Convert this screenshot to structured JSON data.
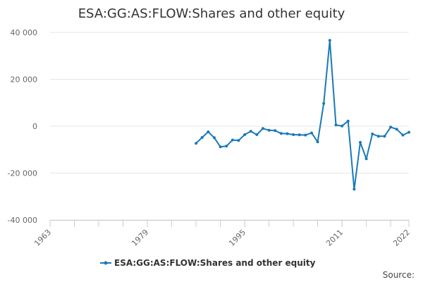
{
  "chart_data": {
    "type": "line",
    "title": "ESA:GG:AS:FLOW:Shares and other equity",
    "xlabel": "",
    "ylabel": "",
    "xlim": [
      1963,
      2022
    ],
    "ylim": [
      -40000,
      40000
    ],
    "x_ticks": [
      {
        "value": 1963,
        "label": "1963"
      },
      {
        "value": 1979,
        "label": "1979"
      },
      {
        "value": 1995,
        "label": "1995"
      },
      {
        "value": 2011,
        "label": "2011"
      },
      {
        "value": 2022,
        "label": "2022"
      }
    ],
    "y_ticks": [
      {
        "value": 40000,
        "label": "40 000"
      },
      {
        "value": 20000,
        "label": "20 000"
      },
      {
        "value": 0,
        "label": "0"
      },
      {
        "value": -20000,
        "label": "-20 000"
      },
      {
        "value": -40000,
        "label": "-40 000"
      }
    ],
    "grid": true,
    "legend_position": "bottom-center",
    "series": [
      {
        "name": "ESA:GG:AS:FLOW:Shares and other equity",
        "color": "#1a7ab5",
        "x": [
          1987,
          1988,
          1989,
          1990,
          1991,
          1992,
          1993,
          1994,
          1995,
          1996,
          1997,
          1998,
          1999,
          2000,
          2001,
          2002,
          2003,
          2004,
          2005,
          2006,
          2007,
          2008,
          2009,
          2010,
          2011,
          2012,
          2013,
          2014,
          2015,
          2016,
          2017,
          2018,
          2019,
          2020,
          2021,
          2022
        ],
        "y": [
          -7300,
          -4800,
          -2400,
          -4900,
          -8800,
          -8500,
          -5900,
          -6100,
          -3600,
          -2200,
          -3600,
          -1000,
          -1700,
          -1900,
          -3100,
          -3200,
          -3600,
          -3700,
          -3800,
          -2900,
          -6700,
          9700,
          36600,
          500,
          100,
          2200,
          -26900,
          -6900,
          -13900,
          -3300,
          -4300,
          -4300,
          -400,
          -1300,
          -3800,
          -2600
        ]
      }
    ],
    "credits": "Source:"
  }
}
